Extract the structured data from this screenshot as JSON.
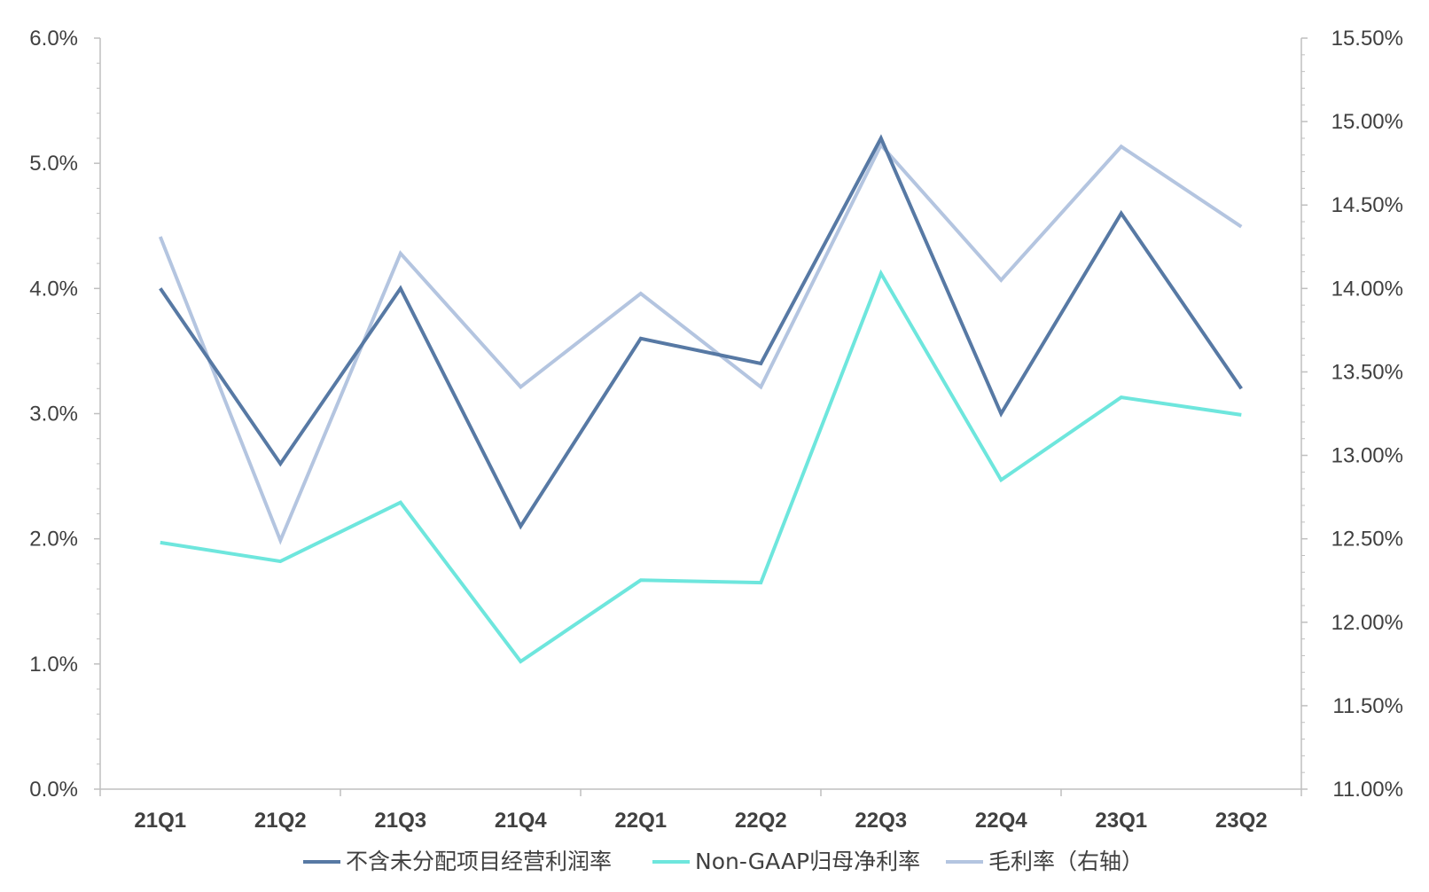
{
  "chart_data": {
    "type": "line",
    "categories": [
      "21Q1",
      "21Q2",
      "21Q3",
      "21Q4",
      "22Q1",
      "22Q2",
      "22Q3",
      "22Q4",
      "23Q1",
      "23Q2"
    ],
    "y_left": {
      "range": [
        0.0,
        6.0
      ],
      "ticks": [
        "0.0%",
        "1.0%",
        "2.0%",
        "3.0%",
        "4.0%",
        "5.0%",
        "6.0%"
      ]
    },
    "y_right": {
      "range": [
        11.0,
        15.5
      ],
      "ticks": [
        "11.00%",
        "11.50%",
        "12.00%",
        "12.50%",
        "13.00%",
        "13.50%",
        "14.00%",
        "14.50%",
        "15.00%",
        "15.50%"
      ]
    },
    "series": [
      {
        "name": "不含未分配项目经营利润率",
        "axis": "left",
        "color": "#5779a4",
        "values": [
          4.0,
          2.6,
          4.0,
          2.1,
          3.6,
          3.4,
          5.2,
          3.0,
          4.6,
          3.2
        ]
      },
      {
        "name": "Non-GAAP归母净利率",
        "axis": "left",
        "color": "#6ee6dd",
        "values": [
          1.97,
          1.82,
          2.29,
          1.02,
          1.67,
          1.65,
          4.12,
          2.47,
          3.13,
          2.99
        ]
      },
      {
        "name": "毛利率（右轴）",
        "axis": "right",
        "color": "#b4c5e0",
        "values": [
          14.31,
          12.49,
          14.21,
          13.41,
          13.97,
          13.41,
          14.86,
          14.05,
          14.85,
          14.37
        ]
      }
    ],
    "grid": false,
    "legend": "bottom"
  }
}
